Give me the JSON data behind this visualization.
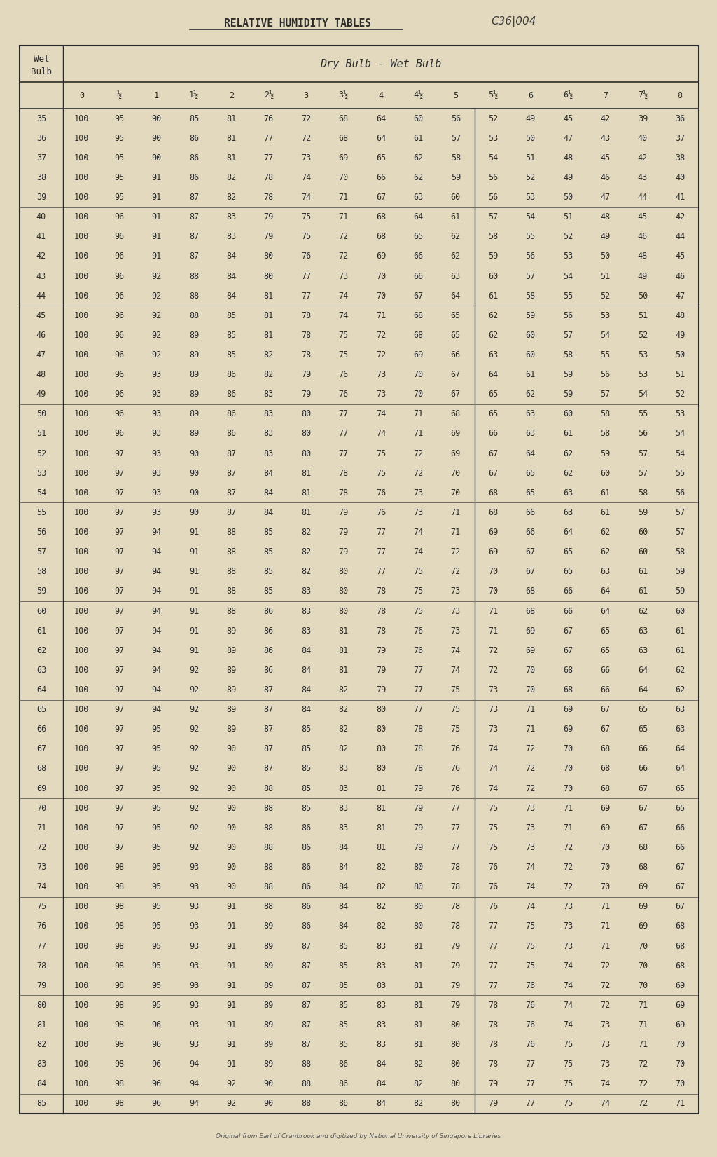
{
  "title": "RELATIVE HUMIDITY TABLES",
  "reference": "C36|004",
  "subtitle": "Dry Bulb - Wet Bulb",
  "footer": "Original from Earl of Cranbrook and digitized by National University of Singapore Libraries",
  "bg_color": "#e2d9be",
  "text_color": "#2c2c2c",
  "col_headers": [
    "0",
    "½",
    "1",
    "1½",
    "2",
    "2½",
    "3",
    "3½",
    "4",
    "4½",
    "5",
    "5½",
    "6",
    "6½",
    "7",
    "7½",
    "8"
  ],
  "rows": [
    [
      35,
      100,
      95,
      90,
      85,
      81,
      76,
      72,
      68,
      64,
      60,
      56,
      52,
      49,
      45,
      42,
      39,
      36
    ],
    [
      36,
      100,
      95,
      90,
      86,
      81,
      77,
      72,
      68,
      64,
      61,
      57,
      53,
      50,
      47,
      43,
      40,
      37
    ],
    [
      37,
      100,
      95,
      90,
      86,
      81,
      77,
      73,
      69,
      65,
      62,
      58,
      54,
      51,
      48,
      45,
      42,
      38
    ],
    [
      38,
      100,
      95,
      91,
      86,
      82,
      78,
      74,
      70,
      66,
      62,
      59,
      56,
      52,
      49,
      46,
      43,
      40
    ],
    [
      39,
      100,
      95,
      91,
      87,
      82,
      78,
      74,
      71,
      67,
      63,
      60,
      56,
      53,
      50,
      47,
      44,
      41
    ],
    [
      40,
      100,
      96,
      91,
      87,
      83,
      79,
      75,
      71,
      68,
      64,
      61,
      57,
      54,
      51,
      48,
      45,
      42
    ],
    [
      41,
      100,
      96,
      91,
      87,
      83,
      79,
      75,
      72,
      68,
      65,
      62,
      58,
      55,
      52,
      49,
      46,
      44
    ],
    [
      42,
      100,
      96,
      91,
      87,
      84,
      80,
      76,
      72,
      69,
      66,
      62,
      59,
      56,
      53,
      50,
      48,
      45
    ],
    [
      43,
      100,
      96,
      92,
      88,
      84,
      80,
      77,
      73,
      70,
      66,
      63,
      60,
      57,
      54,
      51,
      49,
      46
    ],
    [
      44,
      100,
      96,
      92,
      88,
      84,
      81,
      77,
      74,
      70,
      67,
      64,
      61,
      58,
      55,
      52,
      50,
      47
    ],
    [
      45,
      100,
      96,
      92,
      88,
      85,
      81,
      78,
      74,
      71,
      68,
      65,
      62,
      59,
      56,
      53,
      51,
      48
    ],
    [
      46,
      100,
      96,
      92,
      89,
      85,
      81,
      78,
      75,
      72,
      68,
      65,
      62,
      60,
      57,
      54,
      52,
      49
    ],
    [
      47,
      100,
      96,
      92,
      89,
      85,
      82,
      78,
      75,
      72,
      69,
      66,
      63,
      60,
      58,
      55,
      53,
      50
    ],
    [
      48,
      100,
      96,
      93,
      89,
      86,
      82,
      79,
      76,
      73,
      70,
      67,
      64,
      61,
      59,
      56,
      53,
      51
    ],
    [
      49,
      100,
      96,
      93,
      89,
      86,
      83,
      79,
      76,
      73,
      70,
      67,
      65,
      62,
      59,
      57,
      54,
      52
    ],
    [
      50,
      100,
      96,
      93,
      89,
      86,
      83,
      80,
      77,
      74,
      71,
      68,
      65,
      63,
      60,
      58,
      55,
      53
    ],
    [
      51,
      100,
      96,
      93,
      89,
      86,
      83,
      80,
      77,
      74,
      71,
      69,
      66,
      63,
      61,
      58,
      56,
      54
    ],
    [
      52,
      100,
      97,
      93,
      90,
      87,
      83,
      80,
      77,
      75,
      72,
      69,
      67,
      64,
      62,
      59,
      57,
      54
    ],
    [
      53,
      100,
      97,
      93,
      90,
      87,
      84,
      81,
      78,
      75,
      72,
      70,
      67,
      65,
      62,
      60,
      57,
      55
    ],
    [
      54,
      100,
      97,
      93,
      90,
      87,
      84,
      81,
      78,
      76,
      73,
      70,
      68,
      65,
      63,
      61,
      58,
      56
    ],
    [
      55,
      100,
      97,
      93,
      90,
      87,
      84,
      81,
      79,
      76,
      73,
      71,
      68,
      66,
      63,
      61,
      59,
      57
    ],
    [
      56,
      100,
      97,
      94,
      91,
      88,
      85,
      82,
      79,
      77,
      74,
      71,
      69,
      66,
      64,
      62,
      60,
      57
    ],
    [
      57,
      100,
      97,
      94,
      91,
      88,
      85,
      82,
      79,
      77,
      74,
      72,
      69,
      67,
      65,
      62,
      60,
      58
    ],
    [
      58,
      100,
      97,
      94,
      91,
      88,
      85,
      82,
      80,
      77,
      75,
      72,
      70,
      67,
      65,
      63,
      61,
      59
    ],
    [
      59,
      100,
      97,
      94,
      91,
      88,
      85,
      83,
      80,
      78,
      75,
      73,
      70,
      68,
      66,
      64,
      61,
      59
    ],
    [
      60,
      100,
      97,
      94,
      91,
      88,
      86,
      83,
      80,
      78,
      75,
      73,
      71,
      68,
      66,
      64,
      62,
      60
    ],
    [
      61,
      100,
      97,
      94,
      91,
      89,
      86,
      83,
      81,
      78,
      76,
      73,
      71,
      69,
      67,
      65,
      63,
      61
    ],
    [
      62,
      100,
      97,
      94,
      91,
      89,
      86,
      84,
      81,
      79,
      76,
      74,
      72,
      69,
      67,
      65,
      63,
      61
    ],
    [
      63,
      100,
      97,
      94,
      92,
      89,
      86,
      84,
      81,
      79,
      77,
      74,
      72,
      70,
      68,
      66,
      64,
      62
    ],
    [
      64,
      100,
      97,
      94,
      92,
      89,
      87,
      84,
      82,
      79,
      77,
      75,
      73,
      70,
      68,
      66,
      64,
      62
    ],
    [
      65,
      100,
      97,
      94,
      92,
      89,
      87,
      84,
      82,
      80,
      77,
      75,
      73,
      71,
      69,
      67,
      65,
      63
    ],
    [
      66,
      100,
      97,
      95,
      92,
      89,
      87,
      85,
      82,
      80,
      78,
      75,
      73,
      71,
      69,
      67,
      65,
      63
    ],
    [
      67,
      100,
      97,
      95,
      92,
      90,
      87,
      85,
      82,
      80,
      78,
      76,
      74,
      72,
      70,
      68,
      66,
      64
    ],
    [
      68,
      100,
      97,
      95,
      92,
      90,
      87,
      85,
      83,
      80,
      78,
      76,
      74,
      72,
      70,
      68,
      66,
      64
    ],
    [
      69,
      100,
      97,
      95,
      92,
      90,
      88,
      85,
      83,
      81,
      79,
      76,
      74,
      72,
      70,
      68,
      67,
      65
    ],
    [
      70,
      100,
      97,
      95,
      92,
      90,
      88,
      85,
      83,
      81,
      79,
      77,
      75,
      73,
      71,
      69,
      67,
      65
    ],
    [
      71,
      100,
      97,
      95,
      92,
      90,
      88,
      86,
      83,
      81,
      79,
      77,
      75,
      73,
      71,
      69,
      67,
      66
    ],
    [
      72,
      100,
      97,
      95,
      92,
      90,
      88,
      86,
      84,
      81,
      79,
      77,
      75,
      73,
      72,
      70,
      68,
      66
    ],
    [
      73,
      100,
      98,
      95,
      93,
      90,
      88,
      86,
      84,
      82,
      80,
      78,
      76,
      74,
      72,
      70,
      68,
      67
    ],
    [
      74,
      100,
      98,
      95,
      93,
      90,
      88,
      86,
      84,
      82,
      80,
      78,
      76,
      74,
      72,
      70,
      69,
      67
    ],
    [
      75,
      100,
      98,
      95,
      93,
      91,
      88,
      86,
      84,
      82,
      80,
      78,
      76,
      74,
      73,
      71,
      69,
      67
    ],
    [
      76,
      100,
      98,
      95,
      93,
      91,
      89,
      86,
      84,
      82,
      80,
      78,
      77,
      75,
      73,
      71,
      69,
      68
    ],
    [
      77,
      100,
      98,
      95,
      93,
      91,
      89,
      87,
      85,
      83,
      81,
      79,
      77,
      75,
      73,
      71,
      70,
      68
    ],
    [
      78,
      100,
      98,
      95,
      93,
      91,
      89,
      87,
      85,
      83,
      81,
      79,
      77,
      75,
      74,
      72,
      70,
      68
    ],
    [
      79,
      100,
      98,
      95,
      93,
      91,
      89,
      87,
      85,
      83,
      81,
      79,
      77,
      76,
      74,
      72,
      70,
      69
    ],
    [
      80,
      100,
      98,
      95,
      93,
      91,
      89,
      87,
      85,
      83,
      81,
      79,
      78,
      76,
      74,
      72,
      71,
      69
    ],
    [
      81,
      100,
      98,
      96,
      93,
      91,
      89,
      87,
      85,
      83,
      81,
      80,
      78,
      76,
      74,
      73,
      71,
      69
    ],
    [
      82,
      100,
      98,
      96,
      93,
      91,
      89,
      87,
      85,
      83,
      81,
      80,
      78,
      76,
      75,
      73,
      71,
      70
    ],
    [
      83,
      100,
      98,
      96,
      94,
      91,
      89,
      88,
      86,
      84,
      82,
      80,
      78,
      77,
      75,
      73,
      72,
      70
    ],
    [
      84,
      100,
      98,
      96,
      94,
      92,
      90,
      88,
      86,
      84,
      82,
      80,
      79,
      77,
      75,
      74,
      72,
      70
    ],
    [
      85,
      100,
      98,
      96,
      94,
      92,
      90,
      88,
      86,
      84,
      82,
      80,
      79,
      77,
      75,
      74,
      72,
      71
    ]
  ]
}
